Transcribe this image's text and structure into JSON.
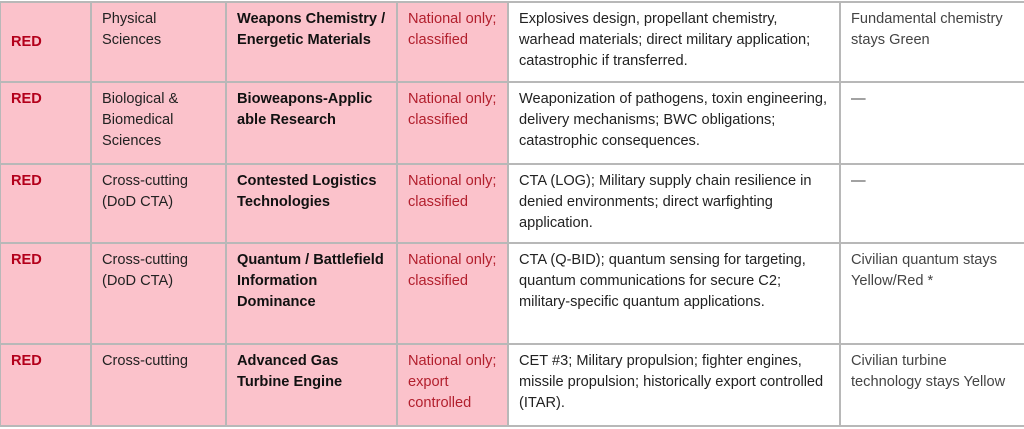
{
  "colors": {
    "row_fill": "#fbc2cb",
    "level_text": "#b3001b",
    "access_text": "#b21f2d"
  },
  "rows": [
    {
      "level": "RED",
      "domain": "Physical Sciences",
      "area": "Weapons Chemistry / Energetic Materials",
      "access": "National only; classified",
      "rationale": "Explosives design, propellant chemistry, warhead materials; direct military application; catastrophic if transferred.",
      "notes": "Fundamental chemistry stays Green"
    },
    {
      "level": "RED",
      "domain": "Biological & Biomedical Sciences",
      "area": "Bioweapons-Applic able Research",
      "access": "National only; classified",
      "rationale": "Weaponization of pathogens, toxin engineering, delivery mechanisms; BWC obligations; catastrophic consequences.",
      "notes": "—"
    },
    {
      "level": "RED",
      "domain": "Cross-cutting (DoD CTA)",
      "area": "Contested Logistics Technologies",
      "access": "National only; classified",
      "rationale": "CTA (LOG); Military supply chain resilience in denied environments; direct warfighting application.",
      "notes": "—"
    },
    {
      "level": "RED",
      "domain": "Cross-cutting (DoD CTA)",
      "area": "Quantum / Battlefield Information Dominance",
      "access": "National only; classified",
      "rationale": "CTA (Q-BID); quantum sensing for targeting, quantum communications for secure C2; military-specific quantum applications.",
      "notes": "Civilian quantum stays Yellow/Red *"
    },
    {
      "level": "RED",
      "domain": "Cross-cutting",
      "area": "Advanced Gas Turbine Engine",
      "access": "National only; export controlled",
      "rationale": "CET #3; Military propulsion; fighter engines, missile propulsion; historically export controlled (ITAR).",
      "notes": "Civilian turbine technology stays Yellow"
    }
  ]
}
